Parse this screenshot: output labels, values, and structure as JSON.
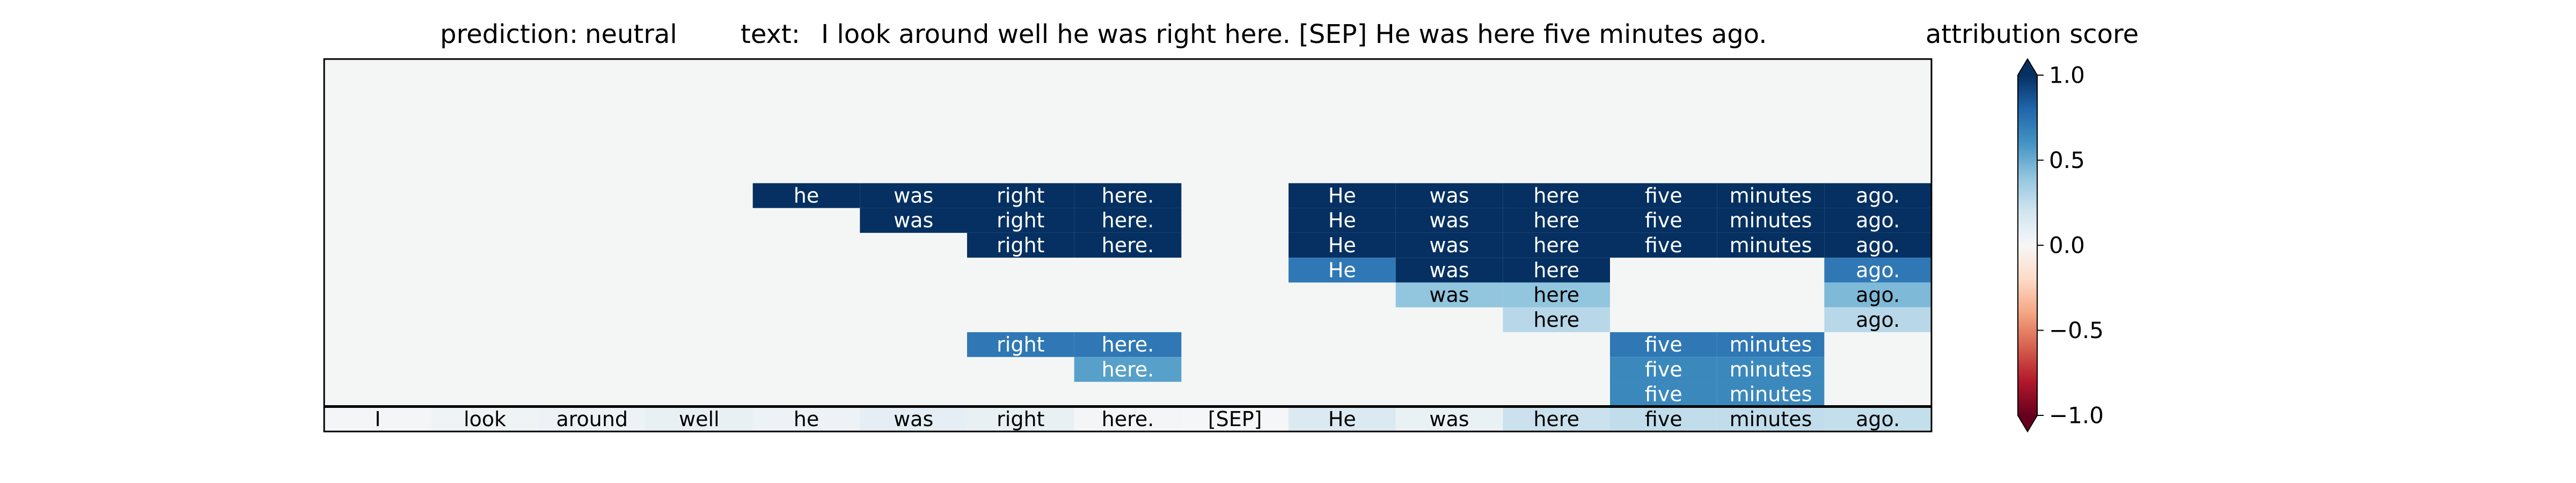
{
  "header": {
    "prediction_label": "prediction:",
    "prediction_value": "neutral",
    "text_label": "text:",
    "text_value": "I look around well he was right here. [SEP] He was here five minutes ago.",
    "colorbar_title": "attribution score"
  },
  "colors": {
    "background": "#f4f6f6",
    "frame": "#000000",
    "colormap": "RdBu",
    "strong_positive": "#053061",
    "neutral": "#f7f7f7",
    "strong_negative": "#67001f"
  },
  "chart_data": {
    "type": "heatmap",
    "title": "",
    "colormap": "RdBu",
    "vmin": -1.0,
    "vmax": 1.0,
    "colorbar": {
      "label": "attribution score",
      "ticks": [
        1.0,
        0.5,
        0.0,
        -0.5,
        -1.0
      ],
      "tick_labels": [
        "1.0",
        "0.5",
        "0.0",
        "−0.5",
        "−1.0"
      ],
      "extend": "both"
    },
    "tokens": [
      "I",
      "look",
      "around",
      "well",
      "he",
      "was",
      "right",
      "here.",
      "[SEP]",
      "He",
      "was",
      "here",
      "five",
      "minutes",
      "ago."
    ],
    "token_scores": [
      0.02,
      0.05,
      0.06,
      0.08,
      0.06,
      0.1,
      0.08,
      0.02,
      0.01,
      0.15,
      0.07,
      0.22,
      0.25,
      0.25,
      0.24
    ],
    "empty_rows_above": 5,
    "rows": [
      {
        "cells": [
          {
            "col": 4,
            "v": 1.0
          },
          {
            "col": 5,
            "v": 1.0
          },
          {
            "col": 6,
            "v": 1.0
          },
          {
            "col": 7,
            "v": 1.0
          },
          {
            "col": 9,
            "v": 1.0
          },
          {
            "col": 10,
            "v": 1.0
          },
          {
            "col": 11,
            "v": 1.0
          },
          {
            "col": 12,
            "v": 1.0
          },
          {
            "col": 13,
            "v": 1.0
          },
          {
            "col": 14,
            "v": 1.0
          }
        ]
      },
      {
        "cells": [
          {
            "col": 5,
            "v": 1.0
          },
          {
            "col": 6,
            "v": 1.0
          },
          {
            "col": 7,
            "v": 1.0
          },
          {
            "col": 9,
            "v": 1.0
          },
          {
            "col": 10,
            "v": 1.0
          },
          {
            "col": 11,
            "v": 1.0
          },
          {
            "col": 12,
            "v": 1.0
          },
          {
            "col": 13,
            "v": 1.0
          },
          {
            "col": 14,
            "v": 1.0
          }
        ]
      },
      {
        "cells": [
          {
            "col": 6,
            "v": 1.0
          },
          {
            "col": 7,
            "v": 1.0
          },
          {
            "col": 9,
            "v": 1.0
          },
          {
            "col": 10,
            "v": 1.0
          },
          {
            "col": 11,
            "v": 1.0
          },
          {
            "col": 12,
            "v": 1.0
          },
          {
            "col": 13,
            "v": 1.0
          },
          {
            "col": 14,
            "v": 1.0
          }
        ]
      },
      {
        "cells": [
          {
            "col": 9,
            "v": 0.72
          },
          {
            "col": 10,
            "v": 1.0
          },
          {
            "col": 11,
            "v": 1.0
          },
          {
            "col": 14,
            "v": 0.72
          }
        ]
      },
      {
        "cells": [
          {
            "col": 10,
            "v": 0.4
          },
          {
            "col": 11,
            "v": 0.4
          },
          {
            "col": 14,
            "v": 0.45
          }
        ]
      },
      {
        "cells": [
          {
            "col": 11,
            "v": 0.28
          },
          {
            "col": 14,
            "v": 0.28
          }
        ]
      },
      {
        "cells": [
          {
            "col": 6,
            "v": 0.72
          },
          {
            "col": 7,
            "v": 0.72
          },
          {
            "col": 12,
            "v": 0.72
          },
          {
            "col": 13,
            "v": 0.72
          }
        ]
      },
      {
        "cells": [
          {
            "col": 7,
            "v": 0.55
          },
          {
            "col": 12,
            "v": 0.65
          },
          {
            "col": 13,
            "v": 0.65
          }
        ]
      },
      {
        "cells": [
          {
            "col": 12,
            "v": 0.65
          },
          {
            "col": 13,
            "v": 0.65
          }
        ]
      }
    ]
  }
}
